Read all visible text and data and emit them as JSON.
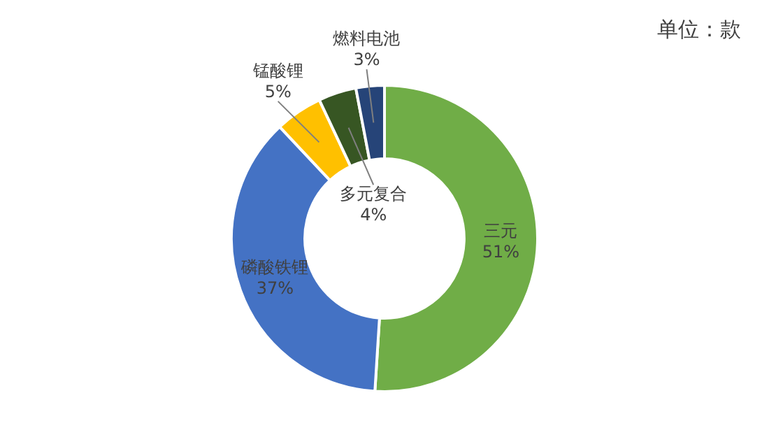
{
  "chart_data": {
    "type": "donut",
    "categories": [
      "三元",
      "磷酸铁锂",
      "锰酸锂",
      "多元复合",
      "燃料电池"
    ],
    "values": [
      51,
      37,
      5,
      4,
      3
    ],
    "colors": [
      "#70ad47",
      "#4472c4",
      "#ffc000",
      "#375623",
      "#264478"
    ],
    "value_labels": [
      "51%",
      "37%",
      "5%",
      "4%",
      "3%"
    ],
    "annotations": [
      "单位：款"
    ]
  }
}
